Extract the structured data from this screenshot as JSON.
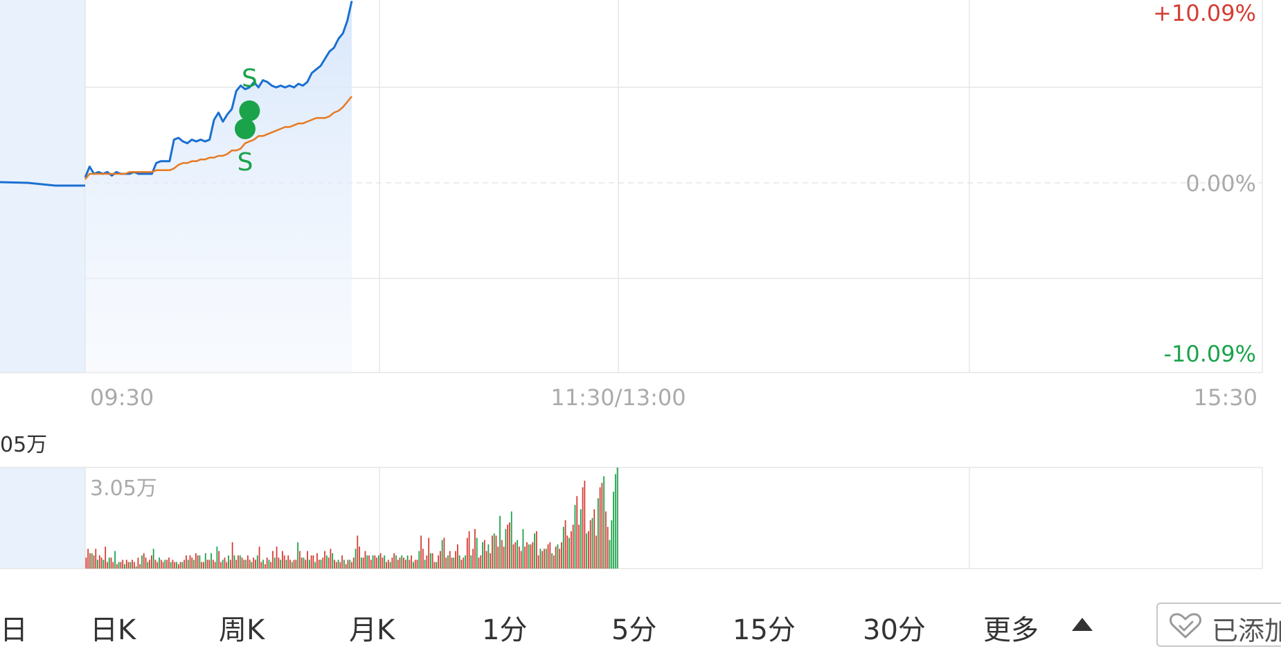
{
  "chart_data": [
    {
      "type": "line",
      "title": "",
      "x_ticks": [
        "09:30",
        "11:30/13:00",
        "15:30"
      ],
      "y_ticks_right": [
        "+10.09%",
        "0.00%",
        "-10.09%"
      ],
      "ylim": [
        -10.09,
        10.09
      ],
      "series": [
        {
          "name": "",
          "color": "#1a6fd1",
          "x": [
            0,
            2,
            4,
            6,
            8,
            10,
            12,
            14,
            16,
            18,
            20,
            22,
            24,
            26,
            28,
            30,
            32,
            34,
            36,
            38,
            40,
            42,
            44,
            46,
            48,
            50,
            52,
            54,
            56,
            58,
            60,
            62,
            64,
            66,
            68,
            70,
            72,
            74,
            76,
            78,
            80,
            82,
            84,
            86,
            88,
            90,
            92,
            94,
            96,
            98,
            100,
            102,
            104,
            106,
            108,
            110,
            112,
            114,
            116,
            118,
            120
          ],
          "y": [
            0.3,
            0.9,
            0.5,
            0.6,
            0.5,
            0.6,
            0.4,
            0.6,
            0.5,
            0.5,
            0.5,
            0.6,
            0.5,
            0.5,
            0.5,
            0.5,
            1.1,
            1.2,
            1.2,
            1.2,
            2.4,
            2.5,
            2.3,
            2.2,
            2.4,
            2.3,
            2.4,
            2.3,
            2.4,
            3.5,
            3.9,
            3.4,
            3.8,
            4.1,
            5.1,
            5.4,
            5.2,
            5.3,
            5.6,
            5.3,
            5.7,
            5.6,
            5.4,
            5.3,
            5.4,
            5.3,
            5.4,
            5.3,
            5.5,
            5.4,
            5.6,
            6.1,
            6.3,
            6.5,
            6.9,
            7.3,
            7.5,
            8.0,
            8.3,
            9.0,
            10.1
          ]
        },
        {
          "name": "",
          "color": "#e8781f",
          "x": [
            0,
            2,
            4,
            6,
            8,
            10,
            12,
            14,
            16,
            18,
            20,
            22,
            24,
            26,
            28,
            30,
            32,
            34,
            36,
            38,
            40,
            42,
            44,
            46,
            48,
            50,
            52,
            54,
            56,
            58,
            60,
            62,
            64,
            66,
            68,
            70,
            72,
            74,
            76,
            78,
            80,
            82,
            84,
            86,
            88,
            90,
            92,
            94,
            96,
            98,
            100,
            102,
            104,
            106,
            108,
            110,
            112,
            114,
            116,
            118,
            120
          ],
          "y": [
            0.2,
            0.5,
            0.5,
            0.5,
            0.5,
            0.5,
            0.5,
            0.5,
            0.5,
            0.5,
            0.6,
            0.6,
            0.6,
            0.6,
            0.6,
            0.6,
            0.7,
            0.7,
            0.7,
            0.7,
            0.8,
            1.0,
            1.1,
            1.1,
            1.2,
            1.2,
            1.3,
            1.3,
            1.4,
            1.4,
            1.5,
            1.5,
            1.6,
            1.8,
            1.8,
            1.9,
            2.2,
            2.3,
            2.4,
            2.6,
            2.6,
            2.7,
            2.8,
            2.9,
            3.0,
            3.1,
            3.1,
            3.2,
            3.3,
            3.3,
            3.4,
            3.5,
            3.6,
            3.6,
            3.6,
            3.7,
            3.9,
            4.0,
            4.2,
            4.5,
            4.8
          ]
        }
      ],
      "markers": [
        {
          "label": "S",
          "x": 74,
          "y": 4.0,
          "label_pos": "above"
        },
        {
          "label": "S",
          "x": 72,
          "y": 3.0,
          "label_pos": "below"
        }
      ]
    },
    {
      "type": "bar",
      "title": "",
      "left_label": "05万",
      "max_label": "3.05万",
      "up_color": "#d33c32",
      "down_color": "#1aa34a",
      "values": [
        5,
        9,
        7,
        7,
        6,
        9,
        4,
        6,
        5,
        4,
        10,
        3,
        5,
        5,
        3,
        8,
        2,
        3,
        3,
        4,
        2,
        4,
        3,
        3,
        4,
        3,
        1,
        5,
        2,
        6,
        7,
        5,
        3,
        4,
        6,
        9,
        4,
        3,
        5,
        4,
        3,
        4,
        4,
        5,
        3,
        4,
        3,
        3,
        2,
        3,
        3,
        4,
        6,
        4,
        6,
        5,
        4,
        7,
        6,
        6,
        3,
        3,
        7,
        4,
        4,
        7,
        4,
        3,
        10,
        8,
        3,
        4,
        5,
        3,
        6,
        4,
        12,
        6,
        4,
        6,
        6,
        5,
        4,
        4,
        6,
        4,
        3,
        5,
        4,
        6,
        10,
        3,
        4,
        2,
        5,
        4,
        3,
        8,
        5,
        10,
        5,
        4,
        8,
        6,
        4,
        6,
        4,
        3,
        4,
        4,
        12,
        8,
        5,
        5,
        4,
        8,
        4,
        6,
        6,
        3,
        7,
        4,
        4,
        5,
        8,
        6,
        5,
        9,
        7,
        4,
        3,
        4,
        3,
        6,
        4,
        2,
        4,
        4,
        3,
        5,
        9,
        15,
        10,
        5,
        5,
        8,
        6,
        6,
        4,
        6,
        6,
        5,
        6,
        7,
        5,
        6,
        3,
        4,
        3,
        5,
        7,
        6,
        4,
        5,
        6,
        5,
        4,
        6,
        4,
        6,
        3,
        4,
        4,
        8,
        15,
        9,
        4,
        6,
        14,
        7,
        7,
        3,
        3,
        6,
        8,
        13,
        14,
        5,
        6,
        8,
        5,
        5,
        8,
        11,
        6,
        4,
        5,
        6,
        14,
        17,
        6,
        9,
        18,
        14,
        5,
        6,
        12,
        13,
        8,
        11,
        7,
        15,
        16,
        15,
        10,
        24,
        13,
        10,
        18,
        20,
        21,
        26,
        11,
        12,
        13,
        10,
        8,
        18,
        10,
        12,
        11,
        11,
        12,
        16,
        17,
        6,
        9,
        8,
        9,
        9,
        11,
        12,
        7,
        6,
        10,
        11,
        9,
        12,
        19,
        22,
        15,
        14,
        17,
        20,
        29,
        33,
        20,
        27,
        37,
        40,
        16,
        17,
        22,
        23,
        27,
        15,
        32,
        37,
        39,
        42,
        26,
        19,
        13,
        22,
        35,
        43,
        46
      ],
      "up": [
        1,
        1,
        1,
        0,
        1,
        1,
        0,
        1,
        1,
        0,
        1,
        1,
        0,
        1,
        1,
        0,
        1,
        0,
        1,
        1,
        0,
        1,
        1,
        0,
        1,
        1,
        0,
        1,
        1,
        0,
        1,
        1,
        0,
        1,
        1,
        0,
        1,
        1,
        0,
        1,
        1,
        0,
        1,
        1,
        0,
        1,
        1,
        0,
        1,
        1,
        0,
        1,
        1,
        0,
        1,
        1,
        0,
        1,
        1,
        0,
        1,
        1,
        0,
        1,
        1,
        0,
        1,
        1,
        0,
        1,
        1,
        0,
        1,
        1,
        0,
        1,
        1,
        0,
        1,
        1,
        0,
        1,
        1,
        0,
        1,
        1,
        0,
        1,
        1,
        0,
        1,
        1,
        0,
        1,
        1,
        0,
        1,
        1,
        0,
        1,
        1,
        0,
        1,
        1,
        0,
        1,
        1,
        0,
        1,
        1,
        0,
        1,
        1,
        0,
        1,
        1,
        0,
        1,
        1,
        0,
        1,
        1,
        0,
        1,
        1,
        0,
        1,
        1,
        0,
        1,
        1,
        0,
        1,
        1,
        0,
        1,
        1,
        0,
        1,
        1,
        0,
        1,
        1,
        0,
        1,
        1,
        0,
        1,
        1,
        0,
        1,
        1,
        0,
        1,
        1,
        0,
        1,
        1,
        0,
        1,
        1,
        0,
        1,
        1,
        0,
        1,
        1,
        0,
        1,
        1,
        0,
        1,
        1,
        0,
        1,
        1,
        0,
        1,
        1,
        0,
        1,
        1,
        0,
        1,
        1,
        0,
        1,
        1,
        0,
        1,
        1,
        0,
        1,
        1,
        0,
        1,
        1,
        0,
        1,
        1,
        0,
        1,
        1,
        0,
        1,
        1,
        0,
        1,
        1,
        0,
        1,
        1,
        0,
        1,
        1,
        0,
        1,
        1,
        0,
        1,
        1,
        0,
        1,
        1,
        0,
        1,
        1,
        0,
        1,
        1,
        0,
        1,
        1,
        0,
        1,
        1,
        0,
        1,
        1,
        0,
        1,
        1,
        0,
        1,
        1,
        0,
        1,
        1,
        0,
        1,
        1,
        0,
        1,
        1,
        0,
        1,
        1,
        0,
        1,
        1,
        0,
        1,
        1,
        0,
        1,
        1,
        0,
        1,
        1,
        0,
        1,
        1
      ]
    }
  ],
  "tabs": [
    "日",
    "日K",
    "周K",
    "月K",
    "1分",
    "5分",
    "15分",
    "30分",
    "更多"
  ],
  "watchlist_button": "已添加"
}
